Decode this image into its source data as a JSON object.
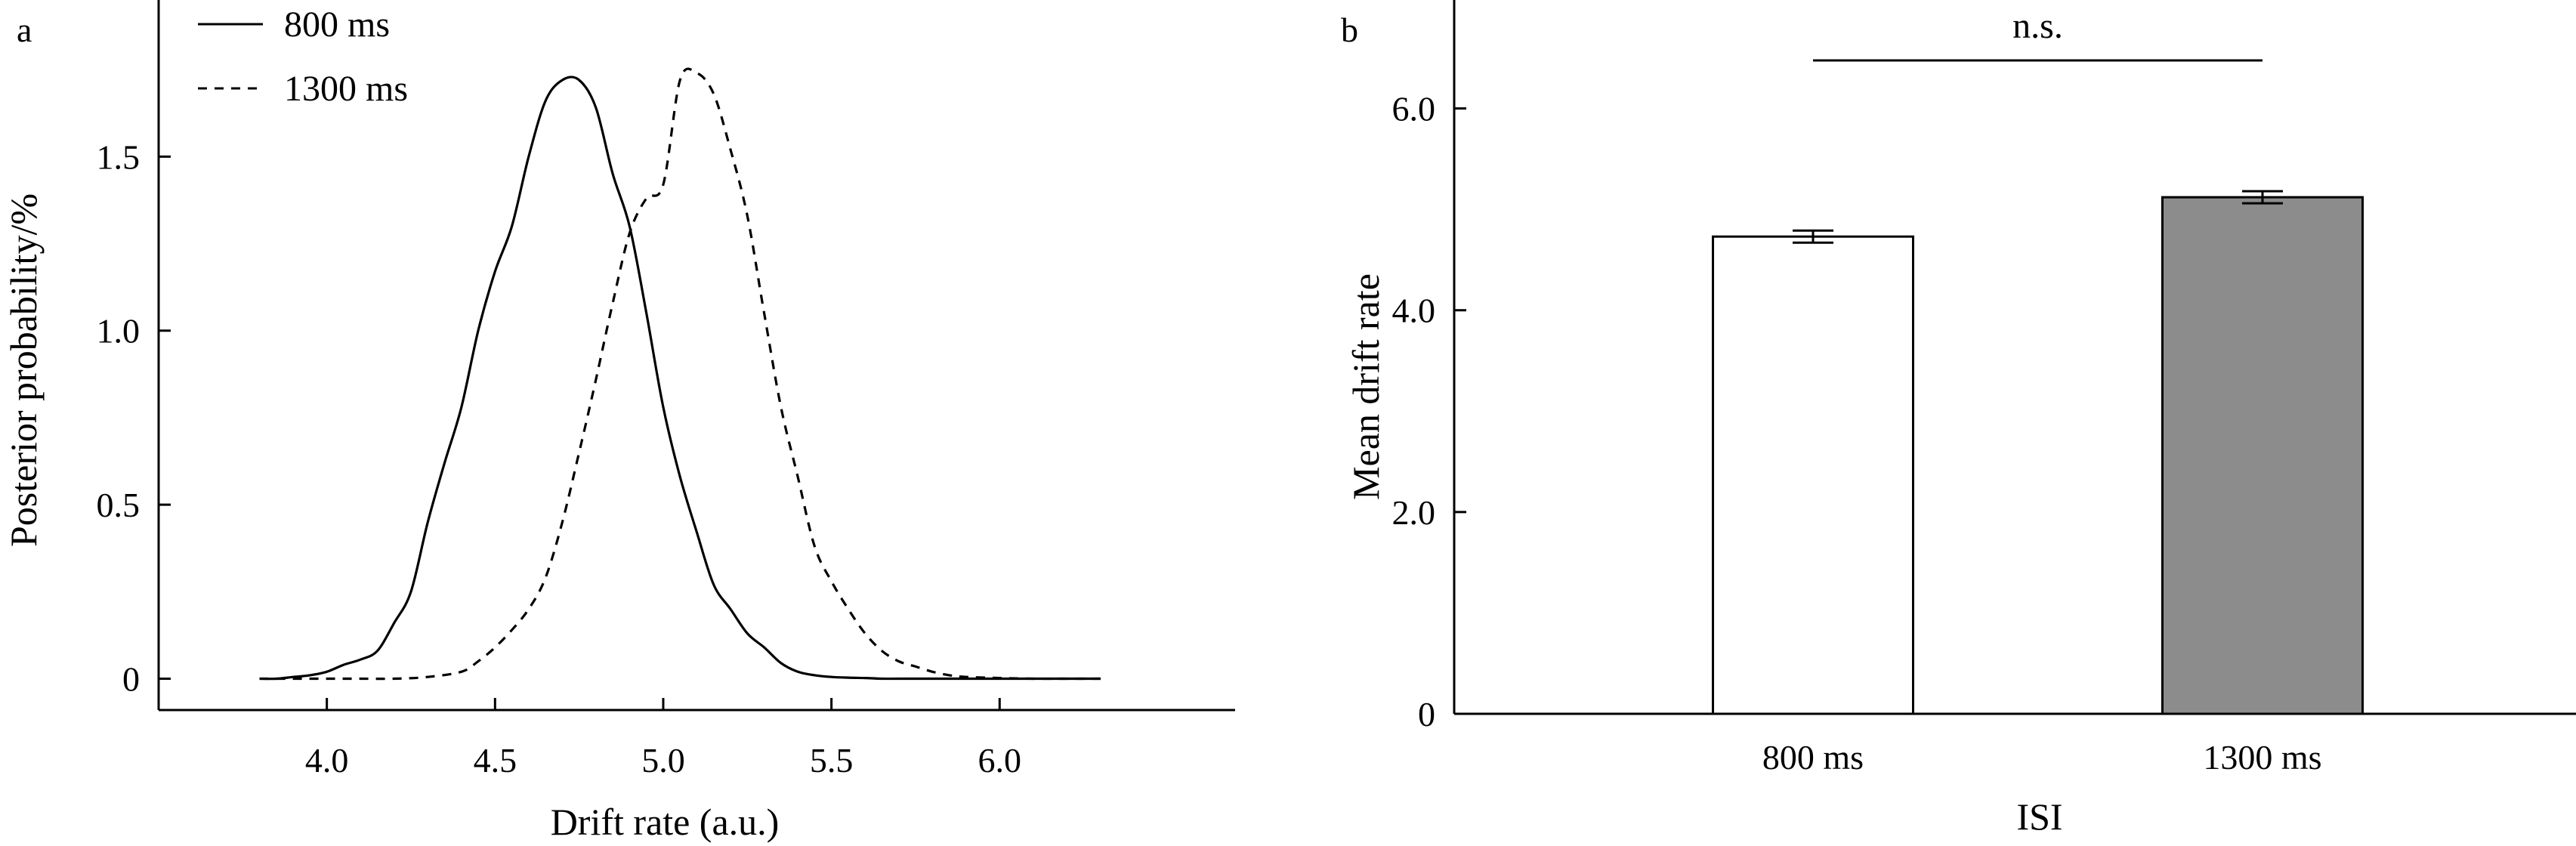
{
  "panel_a": {
    "label": "a"
  },
  "panel_b": {
    "label": "b"
  },
  "chart_data": [
    {
      "type": "line",
      "panel": "a",
      "title": "",
      "xlabel": "Drift rate (a.u.)",
      "ylabel": "Posterior probability/%",
      "xlim": [
        3.5,
        6.7
      ],
      "ylim": [
        -0.09,
        1.95
      ],
      "xticks": [
        4.0,
        4.5,
        5.0,
        5.5,
        6.0
      ],
      "xtick_labels": [
        "4.0",
        "4.5",
        "5.0",
        "5.5",
        "6.0"
      ],
      "yticks": [
        0,
        0.5,
        1.0,
        1.5
      ],
      "ytick_labels": [
        "0",
        "0.5",
        "1.0",
        "1.5"
      ],
      "grid": false,
      "legend": "top-left",
      "series": [
        {
          "name": "800 ms",
          "style": "solid",
          "color": "#000000",
          "x": [
            3.8,
            3.85,
            3.9,
            3.95,
            4.0,
            4.05,
            4.1,
            4.15,
            4.2,
            4.25,
            4.3,
            4.35,
            4.4,
            4.45,
            4.5,
            4.55,
            4.6,
            4.65,
            4.7,
            4.75,
            4.8,
            4.85,
            4.9,
            4.95,
            5.0,
            5.05,
            5.1,
            5.15,
            5.2,
            5.25,
            5.3,
            5.35,
            5.4,
            5.45,
            5.5,
            5.55,
            5.6,
            5.65,
            5.7,
            5.8,
            5.9,
            6.0,
            6.1,
            6.2,
            6.3
          ],
          "y": [
            0.0,
            0.0,
            0.005,
            0.01,
            0.02,
            0.04,
            0.055,
            0.08,
            0.16,
            0.25,
            0.45,
            0.62,
            0.78,
            1.0,
            1.17,
            1.3,
            1.5,
            1.66,
            1.72,
            1.72,
            1.64,
            1.45,
            1.3,
            1.05,
            0.78,
            0.58,
            0.42,
            0.27,
            0.2,
            0.13,
            0.09,
            0.045,
            0.02,
            0.01,
            0.005,
            0.003,
            0.002,
            0.0,
            0.0,
            0.0,
            0.0,
            0.0,
            0.0,
            0.0,
            0.0
          ]
        },
        {
          "name": "1300 ms",
          "style": "dashed",
          "color": "#000000",
          "x": [
            3.8,
            3.9,
            4.0,
            4.1,
            4.2,
            4.3,
            4.4,
            4.45,
            4.5,
            4.55,
            4.6,
            4.65,
            4.7,
            4.75,
            4.8,
            4.85,
            4.9,
            4.95,
            5.0,
            5.05,
            5.1,
            5.15,
            5.2,
            5.25,
            5.3,
            5.35,
            5.4,
            5.45,
            5.5,
            5.55,
            5.6,
            5.65,
            5.7,
            5.75,
            5.8,
            5.85,
            5.9,
            6.0,
            6.1,
            6.2,
            6.3
          ],
          "y": [
            0.0,
            0.0,
            0.0,
            0.0,
            0.0,
            0.005,
            0.02,
            0.05,
            0.09,
            0.14,
            0.2,
            0.29,
            0.45,
            0.65,
            0.86,
            1.08,
            1.28,
            1.38,
            1.42,
            1.72,
            1.74,
            1.68,
            1.52,
            1.33,
            1.05,
            0.78,
            0.58,
            0.38,
            0.28,
            0.2,
            0.13,
            0.08,
            0.05,
            0.035,
            0.02,
            0.01,
            0.005,
            0.002,
            0.0,
            0.0,
            0.0
          ]
        }
      ]
    },
    {
      "type": "bar",
      "panel": "b",
      "title": "",
      "xlabel": "ISI",
      "ylabel": "Mean drift rate",
      "categories": [
        "800 ms",
        "1300 ms"
      ],
      "values": [
        4.73,
        5.12
      ],
      "errors": [
        0.06,
        0.06
      ],
      "bar_colors": [
        "#ffffff",
        "#8c8c8c"
      ],
      "ylim": [
        0,
        7.0
      ],
      "yticks": [
        0,
        2.0,
        4.0,
        6.0
      ],
      "ytick_labels": [
        "0",
        "2.0",
        "4.0",
        "6.0"
      ],
      "grid": false,
      "significance": {
        "label": "n.s.",
        "between": [
          "800 ms",
          "1300 ms"
        ]
      }
    }
  ]
}
